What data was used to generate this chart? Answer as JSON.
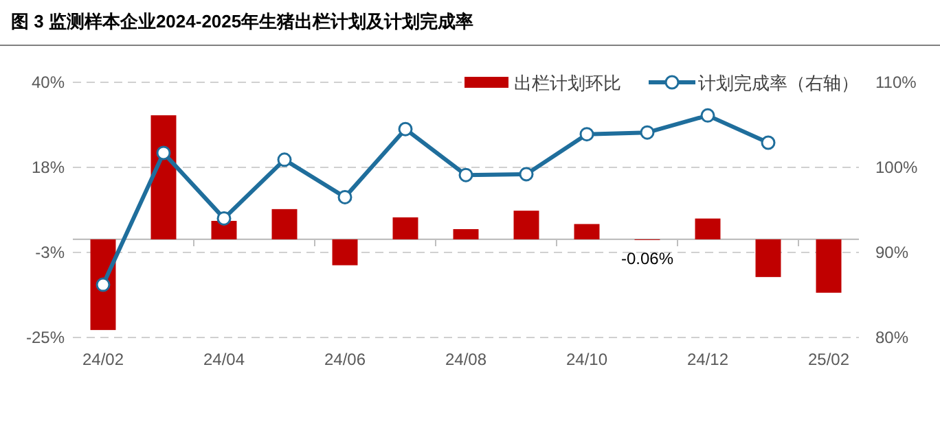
{
  "chart_data": {
    "type": "bar",
    "title": "图 3 监测样本企业2024-2025年生猪出栏计划及计划完成率",
    "categories": [
      "24/02",
      null,
      "24/04",
      null,
      "24/06",
      null,
      "24/08",
      null,
      "24/10",
      null,
      "24/12",
      null,
      "25/02"
    ],
    "series": [
      {
        "name": "出栏计划环比",
        "color": "#c00000",
        "values": [
          -23.1,
          31.6,
          4.7,
          7.7,
          -6.6,
          5.6,
          2.6,
          7.3,
          3.9,
          -0.06,
          5.3,
          -9.6,
          -13.6
        ],
        "value_labels": [
          null,
          null,
          null,
          null,
          null,
          null,
          null,
          null,
          null,
          "-0.06%",
          null,
          null,
          null
        ]
      },
      {
        "name": "计划完成率（右轴）",
        "type": "line",
        "axis": "y2",
        "color": "#1f6e9c",
        "marker": "circle",
        "values": [
          86.2,
          101.7,
          94.0,
          100.9,
          96.5,
          104.5,
          99.1,
          99.2,
          103.9,
          104.1,
          106.1,
          102.9,
          null
        ]
      }
    ],
    "ylim": [
      -25,
      40
    ],
    "yticks": [
      {
        "value": 40,
        "label": "40%"
      },
      {
        "value": 18.33,
        "label": "18%"
      },
      {
        "value": -3.33,
        "label": "-3%"
      },
      {
        "value": -25,
        "label": "-25%"
      }
    ],
    "y2lim": [
      80,
      110
    ],
    "y2ticks": [
      {
        "value": 80,
        "label": "80%"
      },
      {
        "value": 90,
        "label": "90%"
      },
      {
        "value": 100,
        "label": "100%"
      },
      {
        "value": 110,
        "label": "110%"
      }
    ],
    "grid": "y",
    "legend": "top right"
  }
}
